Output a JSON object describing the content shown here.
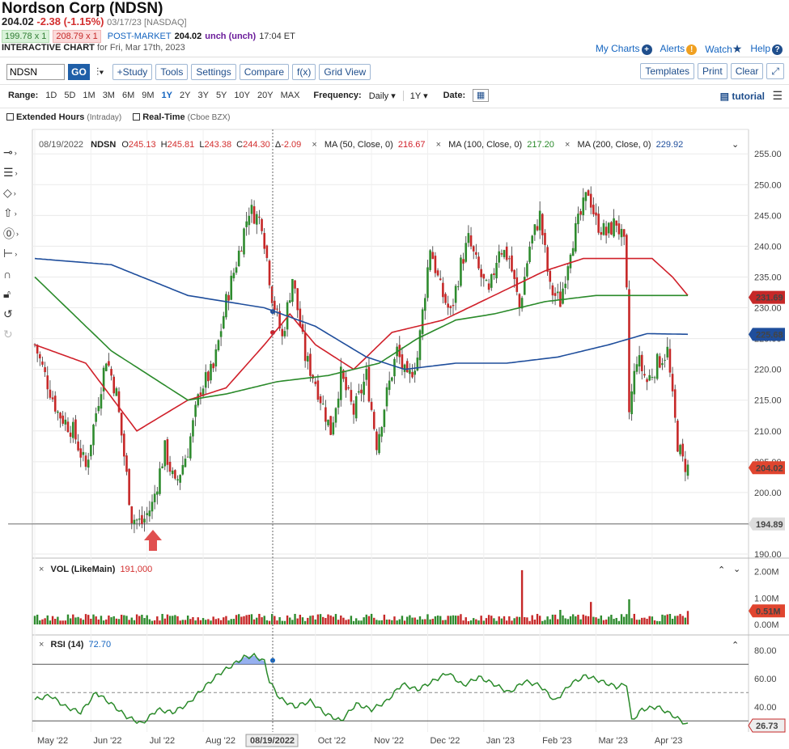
{
  "header": {
    "title": "Nordson Corp (NDSN)",
    "price": "204.02",
    "change": "-2.38 (-1.15%)",
    "date_exchange": "03/17/23 [NASDAQ]",
    "bid": "199.78 x 1",
    "ask": "208.79 x 1",
    "post_market_label": "POST-MARKET",
    "post_market_price": "204.02",
    "post_market_change": "unch (unch)",
    "post_market_time": "17:04 ET",
    "chart_label": "INTERACTIVE CHART",
    "chart_date": "for Fri, Mar 17th, 2023"
  },
  "top_links": {
    "my_charts": "My Charts",
    "alerts": "Alerts",
    "watch": "Watch",
    "help": "Help"
  },
  "toolbar": {
    "symbol_value": "NDSN",
    "go": "GO",
    "study": "+Study",
    "tools": "Tools",
    "settings": "Settings",
    "compare": "Compare",
    "fx": "f(x)",
    "grid_view": "Grid View",
    "templates": "Templates",
    "print": "Print",
    "clear": "Clear"
  },
  "rangebar": {
    "range_label": "Range:",
    "ranges": [
      "1D",
      "5D",
      "1M",
      "3M",
      "6M",
      "9M",
      "1Y",
      "2Y",
      "3Y",
      "5Y",
      "10Y",
      "20Y",
      "MAX"
    ],
    "active_range": "1Y",
    "frequency_label": "Frequency:",
    "frequency_value": "Daily",
    "period_value": "1Y",
    "date_label": "Date:",
    "tutorial": "tutorial"
  },
  "checks": {
    "extended": "Extended Hours",
    "extended_sub": "(Intraday)",
    "realtime": "Real-Time",
    "realtime_sub": "(Cboe BZX)"
  },
  "legend": {
    "date": "08/19/2022",
    "symbol": "NDSN",
    "o_label": "O",
    "o": "245.13",
    "h_label": "H",
    "h": "245.81",
    "l_label": "L",
    "l": "243.38",
    "c_label": "C",
    "c": "244.30",
    "d_label": "Δ",
    "d": "-2.09",
    "ma50": "MA (50, Close, 0)",
    "ma50_val": "216.67",
    "ma100": "MA (100, Close, 0)",
    "ma100_val": "217.20",
    "ma200": "MA (200, Close, 0)",
    "ma200_val": "229.92",
    "vol": "VOL (LikeMain)",
    "vol_val": "191,000",
    "rsi": "RSI (14)",
    "rsi_val": "72.70",
    "crosshair_date": "08/19/2022"
  },
  "colors": {
    "up": "#2e8b2e",
    "down": "#c62828",
    "ma50": "#d0202a",
    "ma100": "#2a8a2a",
    "ma200": "#1f4e9c",
    "rsi": "#2a8a2a"
  },
  "chart_data": {
    "type": "candlestick",
    "x_ticks": [
      "May '22",
      "Jun '22",
      "Jul '22",
      "Aug '22",
      "Oct '22",
      "Nov '22",
      "Dec '22",
      "Jan '23",
      "Feb '23",
      "Mar '23",
      "Apr '23"
    ],
    "y_ticks": [
      "255.00",
      "250.00",
      "245.00",
      "240.00",
      "235.00",
      "230.00",
      "225.00",
      "220.00",
      "215.00",
      "210.00",
      "205.00",
      "200.00",
      "195.00",
      "190.00"
    ],
    "ylim": [
      190,
      257
    ],
    "price_labels": {
      "ma50_last": "231.69",
      "ma200_last": "225.68",
      "last_close": "204.02",
      "period_low": "194.89"
    },
    "price_path": [
      [
        0,
        224
      ],
      [
        4,
        219
      ],
      [
        9,
        213
      ],
      [
        15,
        210
      ],
      [
        20,
        204
      ],
      [
        24,
        213
      ],
      [
        28,
        222
      ],
      [
        32,
        216
      ],
      [
        38,
        196
      ],
      [
        42,
        195
      ],
      [
        46,
        198
      ],
      [
        51,
        207
      ],
      [
        55,
        201
      ],
      [
        60,
        207
      ],
      [
        65,
        217
      ],
      [
        70,
        220
      ],
      [
        75,
        231
      ],
      [
        80,
        239
      ],
      [
        84,
        246
      ],
      [
        89,
        244
      ],
      [
        93,
        232
      ],
      [
        97,
        225
      ],
      [
        101,
        235
      ],
      [
        106,
        222
      ],
      [
        110,
        218
      ],
      [
        116,
        210
      ],
      [
        120,
        219
      ],
      [
        125,
        213
      ],
      [
        130,
        219
      ],
      [
        134,
        208
      ],
      [
        138,
        216
      ],
      [
        142,
        223
      ],
      [
        146,
        218
      ],
      [
        150,
        222
      ],
      [
        155,
        240
      ],
      [
        159,
        233
      ],
      [
        163,
        229
      ],
      [
        167,
        237
      ],
      [
        170,
        241
      ],
      [
        174,
        236
      ],
      [
        178,
        232
      ],
      [
        182,
        240
      ],
      [
        186,
        238
      ],
      [
        190,
        230
      ],
      [
        194,
        240
      ],
      [
        198,
        245
      ],
      [
        202,
        233
      ],
      [
        206,
        231
      ],
      [
        210,
        240
      ],
      [
        214,
        245
      ],
      [
        217,
        249
      ],
      [
        220,
        244
      ],
      [
        224,
        242
      ],
      [
        228,
        244
      ],
      [
        231,
        240
      ],
      [
        232,
        232
      ],
      [
        233,
        213
      ],
      [
        236,
        222
      ],
      [
        240,
        218
      ],
      [
        244,
        221
      ],
      [
        248,
        223
      ],
      [
        250,
        215
      ],
      [
        252,
        208
      ],
      [
        254,
        205
      ],
      [
        256,
        204
      ]
    ],
    "ma50": [
      [
        0,
        224
      ],
      [
        20,
        221
      ],
      [
        40,
        210
      ],
      [
        60,
        215
      ],
      [
        75,
        217
      ],
      [
        90,
        224
      ],
      [
        100,
        229
      ],
      [
        110,
        224
      ],
      [
        125,
        220
      ],
      [
        140,
        226
      ],
      [
        160,
        228
      ],
      [
        180,
        232
      ],
      [
        200,
        236
      ],
      [
        215,
        238
      ],
      [
        230,
        238
      ],
      [
        242,
        238
      ],
      [
        250,
        235
      ],
      [
        256,
        232
      ]
    ],
    "ma100": [
      [
        0,
        235
      ],
      [
        15,
        229
      ],
      [
        30,
        223
      ],
      [
        45,
        219
      ],
      [
        60,
        215
      ],
      [
        75,
        216
      ],
      [
        95,
        218
      ],
      [
        115,
        219
      ],
      [
        135,
        221
      ],
      [
        150,
        225
      ],
      [
        165,
        228
      ],
      [
        180,
        229
      ],
      [
        200,
        231
      ],
      [
        220,
        232
      ],
      [
        235,
        232
      ],
      [
        246,
        232
      ],
      [
        256,
        232
      ]
    ],
    "ma200": [
      [
        0,
        238
      ],
      [
        30,
        237
      ],
      [
        60,
        232
      ],
      [
        90,
        230
      ],
      [
        110,
        227
      ],
      [
        130,
        222
      ],
      [
        145,
        220
      ],
      [
        165,
        221
      ],
      [
        185,
        221
      ],
      [
        205,
        222
      ],
      [
        225,
        224
      ],
      [
        240,
        225.8
      ],
      [
        256,
        225.7
      ]
    ],
    "volume": {
      "ylim": [
        0,
        2.2
      ],
      "y_ticks": [
        "2.00M",
        "1.00M",
        "0.00M"
      ],
      "last": "0.51M",
      "spikes": [
        [
          191,
          2.05
        ],
        [
          206,
          0.55
        ],
        [
          218,
          0.85
        ],
        [
          233,
          0.95
        ],
        [
          256,
          0.51
        ]
      ]
    },
    "rsi": {
      "ylim": [
        25,
        85
      ],
      "y_ticks": [
        "80.00",
        "60.00",
        "40.00"
      ],
      "last": "26.73",
      "overbought": 70,
      "oversold": 30,
      "mid": 50,
      "path": [
        [
          0,
          45
        ],
        [
          6,
          48
        ],
        [
          12,
          40
        ],
        [
          18,
          36
        ],
        [
          24,
          50
        ],
        [
          30,
          42
        ],
        [
          36,
          33
        ],
        [
          42,
          28
        ],
        [
          48,
          38
        ],
        [
          54,
          36
        ],
        [
          60,
          42
        ],
        [
          66,
          53
        ],
        [
          72,
          63
        ],
        [
          78,
          70
        ],
        [
          82,
          75
        ],
        [
          86,
          76
        ],
        [
          90,
          72
        ],
        [
          92,
          58
        ],
        [
          96,
          46
        ],
        [
          102,
          40
        ],
        [
          108,
          44
        ],
        [
          114,
          35
        ],
        [
          120,
          30
        ],
        [
          126,
          42
        ],
        [
          132,
          38
        ],
        [
          138,
          44
        ],
        [
          144,
          56
        ],
        [
          150,
          52
        ],
        [
          156,
          58
        ],
        [
          162,
          64
        ],
        [
          168,
          55
        ],
        [
          174,
          61
        ],
        [
          180,
          56
        ],
        [
          186,
          50
        ],
        [
          192,
          58
        ],
        [
          198,
          55
        ],
        [
          204,
          44
        ],
        [
          210,
          56
        ],
        [
          216,
          62
        ],
        [
          222,
          58
        ],
        [
          228,
          54
        ],
        [
          232,
          56
        ],
        [
          234,
          30
        ],
        [
          238,
          38
        ],
        [
          244,
          40
        ],
        [
          250,
          34
        ],
        [
          256,
          27
        ]
      ]
    }
  }
}
